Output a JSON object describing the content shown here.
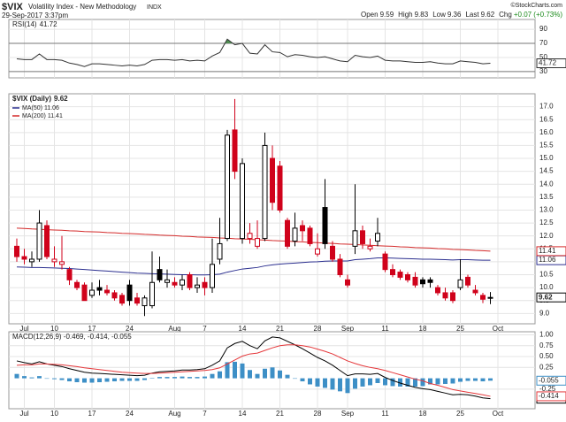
{
  "header": {
    "symbol": "$VIX",
    "name": "Volatility Index - New Methodology",
    "exchange": "INDX",
    "datetime": "29-Sep-2017 3:37pm",
    "quote": [
      {
        "label": "Open",
        "value": "9.59"
      },
      {
        "label": "High",
        "value": "9.83"
      },
      {
        "label": "Low",
        "value": "9.36"
      },
      {
        "label": "Last",
        "value": "9.62"
      },
      {
        "label": "Chg",
        "value": "+0.07 (+0.73%)"
      }
    ],
    "credit": "©StockCharts.com"
  },
  "chart_data": [
    {
      "type": "line",
      "title": "RSI(14)",
      "color": "#333333",
      "overbought": 70,
      "oversold": 30,
      "fill_color": "#4f8f52",
      "values": [
        48,
        47,
        47,
        55,
        47,
        47,
        46,
        42,
        40,
        37,
        41,
        41,
        40,
        39,
        38,
        39,
        38,
        40,
        46,
        47,
        47,
        46,
        47,
        45,
        46,
        45,
        52,
        57,
        76,
        68,
        70,
        56,
        55,
        68,
        58,
        57,
        51,
        54,
        53,
        51,
        50,
        51,
        48,
        45,
        44,
        53,
        51,
        50,
        52,
        46,
        45,
        45,
        44,
        43,
        43,
        44,
        42,
        41,
        41,
        45,
        44,
        43,
        41,
        41.72
      ],
      "ylim": [
        21,
        104
      ],
      "yticks": [
        30,
        50,
        70,
        90
      ],
      "grid": true
    },
    {
      "type": "candlestick",
      "title": "$VIX (Daily)",
      "up_color": "#000000",
      "down_color": "#d0021b",
      "last_color": "#ffff00",
      "categories": [
        null,
        "Jul",
        null,
        null,
        null,
        "10",
        null,
        null,
        null,
        null,
        "17",
        null,
        null,
        null,
        null,
        "24",
        null,
        null,
        null,
        null,
        null,
        "Aug",
        null,
        null,
        null,
        "7",
        null,
        null,
        null,
        null,
        "14",
        null,
        null,
        null,
        null,
        "21",
        null,
        null,
        null,
        null,
        "28",
        null,
        null,
        null,
        "Sep",
        null,
        null,
        null,
        null,
        "11",
        null,
        null,
        null,
        null,
        "18",
        null,
        null,
        null,
        null,
        "25",
        null,
        null,
        null,
        null,
        "Oct"
      ],
      "open": [
        11.6,
        11.2,
        11.0,
        11.1,
        12.4,
        11.0,
        10.9,
        10.7,
        10.2,
        10.1,
        9.7,
        10.0,
        9.9,
        9.8,
        9.7,
        10.1,
        9.6,
        9.3,
        9.3,
        10.7,
        10.2,
        10.2,
        10.1,
        10.5,
        10.0,
        10.2,
        10.0,
        11.1,
        11.9,
        16.1,
        11.9,
        11.9,
        11.6,
        11.9,
        15.0,
        14.7,
        12.6,
        11.8,
        12.4,
        12.3,
        11.3,
        13.1,
        11.6,
        11.1,
        10.3,
        11.6,
        12.2,
        11.5,
        11.8,
        11.3,
        10.7,
        10.6,
        10.5,
        10.4,
        10.3,
        10.3,
        10.0,
        9.8,
        9.8,
        10.0,
        10.4,
        9.9,
        9.7,
        9.59,
        null
      ],
      "high": [
        11.9,
        11.5,
        11.4,
        13.0,
        12.6,
        11.6,
        12.0,
        10.8,
        10.3,
        10.2,
        10.2,
        10.3,
        10.1,
        9.9,
        9.8,
        10.3,
        9.8,
        9.7,
        11.4,
        11.2,
        10.7,
        10.4,
        10.5,
        10.6,
        10.4,
        10.4,
        11.9,
        12.7,
        16.1,
        17.3,
        15.0,
        12.5,
        12.6,
        16.0,
        15.5,
        14.9,
        12.7,
        12.9,
        12.6,
        12.4,
        12.1,
        14.2,
        11.8,
        11.3,
        10.5,
        14.0,
        12.4,
        11.9,
        12.7,
        11.4,
        10.9,
        10.7,
        10.6,
        10.6,
        10.4,
        10.4,
        10.1,
        10.0,
        9.9,
        11.1,
        10.5,
        10.1,
        9.8,
        9.83,
        null
      ],
      "low": [
        11.0,
        10.9,
        10.8,
        11.0,
        11.1,
        10.8,
        10.7,
        10.1,
        9.9,
        9.5,
        9.6,
        9.7,
        9.7,
        9.5,
        9.3,
        9.3,
        9.3,
        8.9,
        9.2,
        10.2,
        10.0,
        10.0,
        9.9,
        9.9,
        9.8,
        9.7,
        9.8,
        10.9,
        11.8,
        14.2,
        11.7,
        11.7,
        11.5,
        11.8,
        13.0,
        12.9,
        11.5,
        11.6,
        11.8,
        11.6,
        11.2,
        11.5,
        11.0,
        10.4,
        10.0,
        11.3,
        11.5,
        11.4,
        11.6,
        10.6,
        10.4,
        10.3,
        10.2,
        10.0,
        10.0,
        10.0,
        9.7,
        9.5,
        9.4,
        9.9,
        10.0,
        9.7,
        9.4,
        9.36,
        null
      ],
      "close": [
        11.2,
        11.1,
        11.1,
        12.5,
        11.2,
        11.1,
        11.0,
        10.3,
        10.0,
        9.5,
        9.9,
        9.9,
        9.8,
        9.6,
        9.4,
        9.5,
        9.4,
        9.6,
        10.2,
        10.3,
        10.3,
        10.1,
        10.3,
        10.0,
        10.1,
        10.0,
        10.9,
        11.7,
        15.9,
        14.5,
        14.8,
        12.1,
        11.9,
        15.5,
        13.3,
        13.0,
        11.6,
        12.3,
        12.2,
        11.7,
        11.5,
        11.7,
        11.1,
        10.5,
        10.1,
        12.2,
        11.7,
        11.6,
        12.1,
        10.7,
        10.5,
        10.4,
        10.3,
        10.1,
        10.15,
        10.2,
        9.8,
        9.6,
        9.5,
        10.3,
        10.1,
        9.8,
        9.55,
        9.62,
        null
      ],
      "series": [
        {
          "name": "MA(50)",
          "color": "#2b2f8f",
          "values": [
            10.8,
            10.79,
            10.78,
            10.78,
            10.77,
            10.76,
            10.75,
            10.74,
            10.72,
            10.7,
            10.68,
            10.66,
            10.64,
            10.62,
            10.6,
            10.58,
            10.56,
            10.55,
            10.54,
            10.53,
            10.52,
            10.51,
            10.5,
            10.5,
            10.49,
            10.49,
            10.5,
            10.52,
            10.6,
            10.66,
            10.72,
            10.75,
            10.78,
            10.84,
            10.88,
            10.91,
            10.93,
            10.95,
            10.97,
            10.99,
            11.0,
            11.02,
            11.03,
            11.03,
            11.03,
            11.08,
            11.1,
            11.12,
            11.15,
            11.15,
            11.14,
            11.13,
            11.12,
            11.11,
            11.1,
            11.1,
            11.09,
            11.08,
            11.07,
            11.08,
            11.08,
            11.07,
            11.06,
            11.06,
            null
          ]
        },
        {
          "name": "MA(200)",
          "color": "#d42a2a",
          "values": [
            12.3,
            12.29,
            12.27,
            12.26,
            12.24,
            12.23,
            12.22,
            12.2,
            12.19,
            12.17,
            12.16,
            12.15,
            12.13,
            12.12,
            12.1,
            12.09,
            12.08,
            12.06,
            12.05,
            12.03,
            12.02,
            12.01,
            11.99,
            11.98,
            11.96,
            11.95,
            11.94,
            11.92,
            11.91,
            11.89,
            11.88,
            11.87,
            11.85,
            11.84,
            11.82,
            11.81,
            11.8,
            11.78,
            11.77,
            11.75,
            11.74,
            11.72,
            11.71,
            11.69,
            11.68,
            11.67,
            11.65,
            11.64,
            11.62,
            11.61,
            11.6,
            11.58,
            11.57,
            11.55,
            11.54,
            11.53,
            11.51,
            11.5,
            11.48,
            11.47,
            11.46,
            11.44,
            11.43,
            11.41,
            null
          ]
        }
      ],
      "ylim": [
        8.6,
        17.5
      ],
      "yticks": [
        {
          "value": 9,
          "label": "9.0"
        },
        9.5,
        {
          "value": 10,
          "label": "10.0"
        },
        10.5,
        {
          "value": 11,
          "label": "11.0"
        },
        11.5,
        {
          "value": 12,
          "label": "12.0"
        },
        12.5,
        {
          "value": 13,
          "label": "13.0"
        },
        13.5,
        {
          "value": 14,
          "label": "14.0"
        },
        14.5,
        {
          "value": 15,
          "label": "15.0"
        },
        15.5,
        {
          "value": 16,
          "label": "16.0"
        },
        16.5,
        {
          "value": 17,
          "label": "17.0"
        }
      ],
      "grid": true
    },
    {
      "type": "macd",
      "legend": "MACD(12,26,9) -0.469, -0.414, -0.055",
      "categories": [
        null,
        "Jul",
        null,
        null,
        null,
        "10",
        null,
        null,
        null,
        null,
        "17",
        null,
        null,
        null,
        null,
        "24",
        null,
        null,
        null,
        null,
        null,
        "Aug",
        null,
        null,
        null,
        "7",
        null,
        null,
        null,
        null,
        "14",
        null,
        null,
        null,
        null,
        "21",
        null,
        null,
        null,
        null,
        "28",
        null,
        null,
        null,
        "Sep",
        null,
        null,
        null,
        null,
        "11",
        null,
        null,
        null,
        null,
        "18",
        null,
        null,
        null,
        null,
        "25",
        null,
        null,
        null,
        null,
        "Oct"
      ],
      "series": [
        {
          "type": "line",
          "color": "#000000",
          "values": [
            0.4,
            0.36,
            0.33,
            0.38,
            0.33,
            0.3,
            0.27,
            0.22,
            0.18,
            0.14,
            0.12,
            0.11,
            0.1,
            0.09,
            0.08,
            0.07,
            0.06,
            0.07,
            0.12,
            0.15,
            0.16,
            0.17,
            0.19,
            0.19,
            0.2,
            0.22,
            0.3,
            0.4,
            0.7,
            0.8,
            0.85,
            0.75,
            0.68,
            0.86,
            0.95,
            0.93,
            0.85,
            0.77,
            0.68,
            0.58,
            0.48,
            0.4,
            0.3,
            0.18,
            0.06,
            0.1,
            0.1,
            0.09,
            0.11,
            0.02,
            -0.05,
            -0.11,
            -0.16,
            -0.21,
            -0.24,
            -0.26,
            -0.3,
            -0.34,
            -0.38,
            -0.37,
            -0.38,
            -0.41,
            -0.45,
            -0.469,
            null
          ]
        },
        {
          "type": "line",
          "color": "#e5383b",
          "values": [
            0.3,
            0.31,
            0.31,
            0.33,
            0.33,
            0.32,
            0.31,
            0.29,
            0.27,
            0.24,
            0.22,
            0.2,
            0.18,
            0.16,
            0.14,
            0.13,
            0.12,
            0.11,
            0.11,
            0.12,
            0.13,
            0.14,
            0.15,
            0.16,
            0.17,
            0.18,
            0.2,
            0.24,
            0.33,
            0.42,
            0.51,
            0.56,
            0.58,
            0.64,
            0.7,
            0.75,
            0.77,
            0.77,
            0.75,
            0.72,
            0.67,
            0.62,
            0.56,
            0.48,
            0.4,
            0.34,
            0.29,
            0.25,
            0.22,
            0.18,
            0.13,
            0.08,
            0.03,
            -0.02,
            -0.06,
            -0.12,
            -0.16,
            -0.21,
            -0.26,
            -0.29,
            -0.32,
            -0.35,
            -0.38,
            -0.414,
            null
          ]
        },
        {
          "type": "bar",
          "color": "#3d8fc6",
          "values": [
            0.1,
            0.05,
            0.02,
            0.05,
            0.0,
            -0.02,
            -0.04,
            -0.07,
            -0.09,
            -0.1,
            -0.1,
            -0.09,
            -0.08,
            -0.07,
            -0.06,
            -0.06,
            -0.06,
            -0.04,
            0.01,
            0.03,
            0.03,
            0.03,
            0.04,
            0.03,
            0.03,
            0.04,
            0.1,
            0.16,
            0.37,
            0.38,
            0.34,
            0.19,
            0.1,
            0.22,
            0.25,
            0.18,
            0.08,
            0.0,
            -0.07,
            -0.14,
            -0.19,
            -0.22,
            -0.26,
            -0.3,
            -0.34,
            -0.24,
            -0.19,
            -0.16,
            -0.11,
            -0.16,
            -0.18,
            -0.19,
            -0.19,
            -0.19,
            -0.18,
            -0.14,
            -0.14,
            -0.13,
            -0.12,
            -0.08,
            -0.06,
            -0.06,
            -0.07,
            -0.055,
            null
          ]
        }
      ],
      "ylim": [
        -0.7,
        1.07
      ],
      "yticks": [
        -0.25,
        0.25,
        {
          "value": 0.5,
          "label": "0.50"
        },
        0.75,
        {
          "value": 1,
          "label": "1.00"
        }
      ],
      "grid": true
    }
  ]
}
